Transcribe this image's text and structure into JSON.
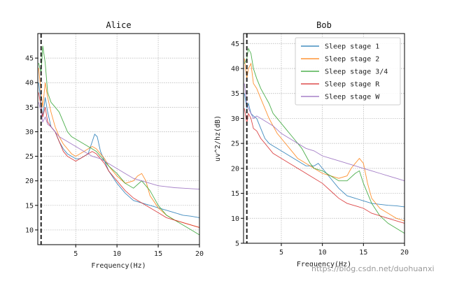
{
  "watermark": "https://blog.csdn.net/duohuanxi",
  "colors": {
    "Sleep stage 1": "#1f77b4",
    "Sleep stage 2": "#ff7f0e",
    "Sleep stage 3/4": "#2ca02c",
    "Sleep stage R": "#d62728",
    "Sleep stage W": "#9467bd"
  },
  "chart_data": [
    {
      "type": "line",
      "title": "Alice",
      "xlabel": "Frequency(Hz)",
      "ylabel": "",
      "xlim": [
        0.4,
        20
      ],
      "ylim": [
        7,
        50
      ],
      "xticks": [
        5,
        10,
        15,
        20
      ],
      "yticks": [
        10,
        15,
        20,
        25,
        30,
        35,
        40,
        45
      ],
      "grid": true,
      "vline_x": 0.8,
      "legend": false,
      "series": [
        {
          "name": "Sleep stage 1",
          "x": [
            0.5,
            0.8,
            1,
            1.3,
            1.6,
            2,
            2.5,
            3,
            3.5,
            4,
            4.5,
            5,
            5.5,
            6,
            6.5,
            7,
            7.3,
            7.6,
            8,
            8.5,
            9,
            10,
            11,
            12,
            13,
            14,
            15,
            16,
            17,
            18,
            19,
            20
          ],
          "y": [
            40,
            36,
            33,
            37,
            34,
            31,
            30,
            28,
            26.5,
            25.5,
            25,
            24.5,
            24.5,
            25,
            25.5,
            28,
            29.5,
            29,
            26,
            24,
            22,
            19.5,
            17.5,
            16,
            15.5,
            15,
            14.5,
            14,
            13.5,
            13,
            12.8,
            12.5
          ]
        },
        {
          "name": "Sleep stage 2",
          "x": [
            0.5,
            0.8,
            1,
            1.3,
            1.6,
            2,
            2.5,
            3,
            3.5,
            4,
            4.5,
            5,
            5.5,
            6,
            6.5,
            7,
            7.5,
            8,
            8.5,
            9,
            10,
            11,
            12,
            12.5,
            13,
            13.5,
            14,
            15,
            16,
            17,
            18,
            19,
            20
          ],
          "y": [
            43,
            38,
            35,
            40,
            37,
            34,
            31,
            29,
            27.5,
            26.5,
            25.5,
            25,
            25.5,
            26,
            26.5,
            27,
            26.5,
            25.5,
            24.5,
            23,
            21,
            19.5,
            20,
            21,
            21.5,
            20,
            17,
            14.5,
            13,
            12,
            11.5,
            11,
            10.5
          ]
        },
        {
          "name": "Sleep stage 3/4",
          "x": [
            0.5,
            0.8,
            1,
            1.3,
            1.6,
            2,
            2.5,
            3,
            3.5,
            4,
            4.5,
            5,
            5.5,
            6,
            6.5,
            7,
            7.5,
            8,
            8.5,
            9,
            10,
            11,
            12,
            13,
            14,
            15,
            16,
            17,
            18,
            19,
            20
          ],
          "y": [
            44,
            42,
            47.5,
            44,
            38,
            36,
            35,
            34,
            32,
            30,
            29,
            28.5,
            28,
            27.5,
            27,
            26.5,
            26,
            25,
            24,
            23,
            21.5,
            19.5,
            18.5,
            20,
            18,
            15,
            13,
            12,
            11,
            10,
            9
          ]
        },
        {
          "name": "Sleep stage R",
          "x": [
            0.5,
            0.8,
            1,
            1.3,
            1.6,
            2,
            2.5,
            3,
            3.5,
            4,
            4.5,
            5,
            5.5,
            6,
            6.5,
            7,
            7.5,
            8,
            8.5,
            9,
            10,
            11,
            12,
            13,
            14,
            15,
            16,
            17,
            18,
            19,
            20
          ],
          "y": [
            38,
            35,
            33,
            35,
            32,
            31,
            30,
            28,
            26,
            25,
            24.5,
            24,
            24.5,
            25,
            25.5,
            26,
            25.5,
            24.5,
            23.5,
            22,
            20,
            18,
            16.5,
            15.5,
            14.5,
            13.5,
            12.5,
            12,
            11.5,
            11,
            10.5
          ]
        },
        {
          "name": "Sleep stage W",
          "x": [
            0.5,
            0.8,
            1,
            1.3,
            1.6,
            2,
            2.5,
            3,
            3.5,
            4,
            5,
            6,
            7,
            8,
            9,
            10,
            11,
            12,
            13,
            14,
            15,
            16,
            17,
            18,
            19,
            20
          ],
          "y": [
            36,
            34,
            32,
            33,
            31.5,
            31,
            30,
            29,
            28.5,
            28,
            27,
            26,
            25,
            24.5,
            23.5,
            22.5,
            21.5,
            20.5,
            20,
            19.5,
            19,
            18.8,
            18.6,
            18.5,
            18.4,
            18.3
          ]
        }
      ]
    },
    {
      "type": "line",
      "title": "Bob",
      "xlabel": "Frequency(Hz)",
      "ylabel": "uv^2/hz(dB)",
      "xlim": [
        0.4,
        20
      ],
      "ylim": [
        5,
        47
      ],
      "xticks": [
        5,
        10,
        15,
        20
      ],
      "yticks": [
        5,
        10,
        15,
        20,
        25,
        30,
        35,
        40,
        45
      ],
      "grid": true,
      "vline_x": 0.8,
      "legend": true,
      "legend_position": "top-right",
      "series": [
        {
          "name": "Sleep stage 1",
          "x": [
            0.5,
            0.8,
            1,
            1.3,
            1.6,
            2,
            2.5,
            3,
            3.5,
            4,
            4.5,
            5,
            5.5,
            6,
            6.5,
            7,
            7.5,
            8,
            8.5,
            9,
            9.5,
            10,
            11,
            12,
            13,
            14,
            15,
            16,
            17,
            18,
            19,
            20
          ],
          "y": [
            35,
            32,
            33,
            31,
            30.5,
            30,
            28,
            26,
            25,
            24.5,
            24,
            23.5,
            23,
            22.5,
            22,
            21.5,
            21,
            20.5,
            20.5,
            20.5,
            21,
            20,
            18,
            16,
            14.5,
            14,
            13.5,
            13,
            12.8,
            12.6,
            12.5,
            12.3
          ]
        },
        {
          "name": "Sleep stage 2",
          "x": [
            0.5,
            0.8,
            1,
            1.3,
            1.6,
            2,
            2.5,
            3,
            3.5,
            4,
            4.5,
            5,
            5.5,
            6,
            6.5,
            7,
            7.5,
            8,
            8.5,
            9,
            10,
            11,
            12,
            13,
            13.5,
            14,
            14.5,
            15,
            15.5,
            16,
            17,
            18,
            19,
            20
          ],
          "y": [
            42,
            38,
            40,
            41,
            37,
            36,
            34,
            32,
            30,
            28.5,
            27,
            26,
            25,
            24,
            23,
            22,
            21.5,
            21,
            20.5,
            20,
            19,
            18.5,
            18,
            18.5,
            20,
            21,
            22,
            21,
            17,
            14,
            12,
            11,
            10,
            9.5
          ]
        },
        {
          "name": "Sleep stage 3/4",
          "x": [
            0.5,
            0.8,
            1,
            1.3,
            1.6,
            2,
            2.5,
            3,
            3.5,
            4,
            4.5,
            5,
            5.5,
            6,
            6.5,
            7,
            7.5,
            8,
            8.5,
            9,
            10,
            11,
            12,
            13,
            14,
            14.5,
            15,
            16,
            17,
            18,
            19,
            20
          ],
          "y": [
            41,
            42,
            44,
            43,
            40,
            38,
            36,
            34.5,
            33,
            31,
            30,
            29,
            28,
            27,
            26,
            25,
            24,
            22.5,
            21,
            20,
            19.5,
            18.5,
            17.5,
            17.5,
            19,
            19.5,
            17,
            13,
            10.5,
            9,
            8,
            7
          ]
        },
        {
          "name": "Sleep stage R",
          "x": [
            0.5,
            0.8,
            1,
            1.3,
            1.6,
            2,
            2.5,
            3,
            3.5,
            4,
            4.5,
            5,
            5.5,
            6,
            6.5,
            7,
            7.5,
            8,
            8.5,
            9,
            10,
            11,
            12,
            13,
            14,
            15,
            16,
            17,
            18,
            19,
            20
          ],
          "y": [
            32,
            29,
            31,
            30,
            28,
            27.5,
            26,
            25,
            24,
            23,
            22.5,
            22,
            21.5,
            21,
            20.5,
            20,
            19.5,
            19,
            18.5,
            18,
            17,
            15.5,
            14,
            13,
            12.5,
            12,
            11,
            10.5,
            10,
            9.5,
            9
          ]
        },
        {
          "name": "Sleep stage W",
          "x": [
            0.5,
            0.8,
            1,
            1.3,
            1.6,
            2,
            2.5,
            3,
            3.5,
            4,
            5,
            6,
            7,
            8,
            9,
            10,
            11,
            12,
            13,
            14,
            15,
            16,
            17,
            18,
            19,
            20
          ],
          "y": [
            37,
            33,
            32,
            31,
            30,
            30.5,
            30,
            29.5,
            29,
            28.5,
            27,
            26,
            25,
            24,
            23.5,
            22.5,
            22,
            21.5,
            21,
            20.5,
            20,
            19.5,
            19,
            18.5,
            18,
            17.5
          ]
        }
      ]
    }
  ]
}
